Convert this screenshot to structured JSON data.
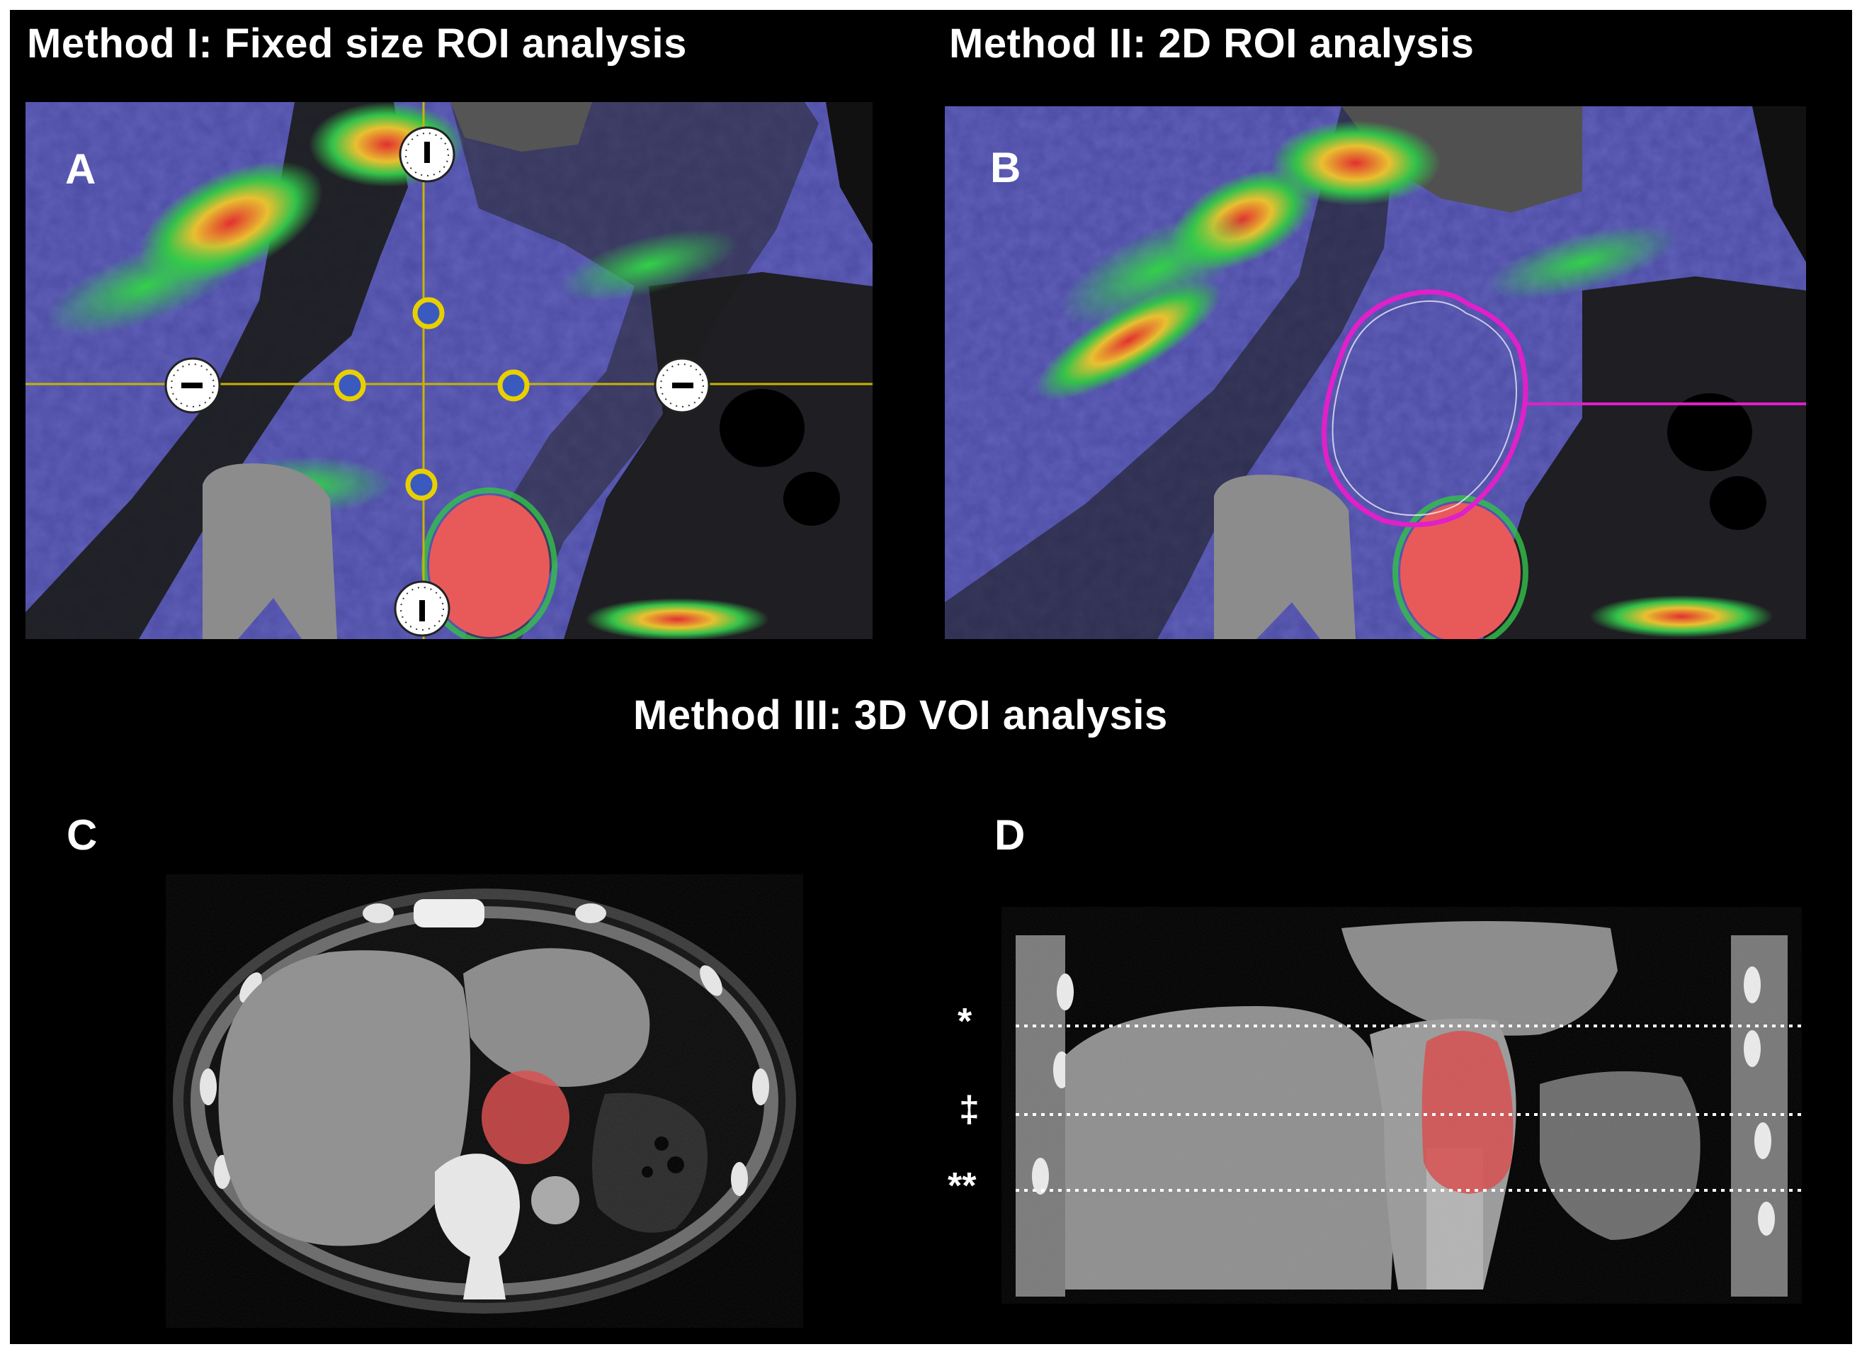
{
  "figure": {
    "titles": {
      "method1": "Method I: Fixed size ROI analysis",
      "method2": "Method II: 2D ROI analysis",
      "method3": "Method III: 3D VOI analysis"
    },
    "panel_labels": {
      "a": "A",
      "b": "B",
      "c": "C",
      "d": "D"
    },
    "level_markers": {
      "top": "*",
      "middle": "‡",
      "bottom": "**"
    },
    "colors": {
      "background": "#000000",
      "roi_marker": "#e8d000",
      "roi_outline": "#e020c8",
      "voi_fill": "#d84a4a",
      "heat_low": "#4a4ab8",
      "heat_mid": "#33c24a",
      "heat_high": "#e23030"
    },
    "icons": {
      "clock_marker": "clock-marker-icon",
      "circle_marker": "yellow-circle-roi-icon",
      "roi_contour": "roi-contour-icon"
    },
    "roi_counts": {
      "fixed_size_circles": 4,
      "clock_handles": 4
    }
  }
}
